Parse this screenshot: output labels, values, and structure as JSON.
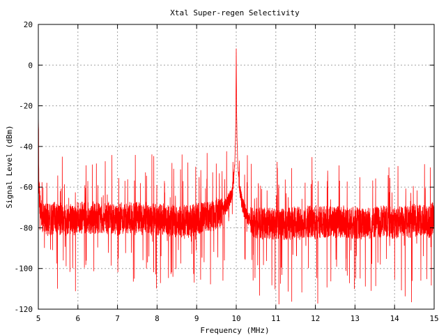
{
  "chart_data": {
    "type": "line",
    "title": "Xtal Super-regen Selectivity",
    "xlabel": "Frequency (MHz)",
    "ylabel": "Signal Level (dBm)",
    "xlim": [
      5,
      15
    ],
    "ylim": [
      -120,
      20
    ],
    "x_ticks": [
      5,
      6,
      7,
      8,
      9,
      10,
      11,
      12,
      13,
      14,
      15
    ],
    "y_ticks": [
      -120,
      -100,
      -80,
      -60,
      -40,
      -20,
      0,
      20
    ],
    "grid": true,
    "grid_style": "dotted",
    "line_color": "#ff0000",
    "series": [
      {
        "name": "",
        "x": [
          5.0,
          5.02,
          5.05,
          5.1,
          5.2,
          5.3,
          5.4,
          5.5,
          5.6,
          5.7,
          5.8,
          5.9,
          6.0,
          6.1,
          6.2,
          6.3,
          6.4,
          6.5,
          6.6,
          6.7,
          6.8,
          6.9,
          7.0,
          7.1,
          7.2,
          7.3,
          7.4,
          7.5,
          7.6,
          7.7,
          7.8,
          7.9,
          8.0,
          8.1,
          8.2,
          8.3,
          8.4,
          8.5,
          8.6,
          8.7,
          8.8,
          8.9,
          9.0,
          9.1,
          9.2,
          9.3,
          9.4,
          9.5,
          9.6,
          9.7,
          9.75,
          9.8,
          9.85,
          9.9,
          9.93,
          9.96,
          9.98,
          9.99,
          10.0,
          10.01,
          10.02,
          10.04,
          10.07,
          10.1,
          10.15,
          10.2,
          10.25,
          10.3,
          10.4,
          10.5,
          10.6,
          10.7,
          10.8,
          10.9,
          11.0,
          11.1,
          11.2,
          11.3,
          11.4,
          11.5,
          11.6,
          11.7,
          11.8,
          11.9,
          12.0,
          12.1,
          12.2,
          12.3,
          12.4,
          12.5,
          12.6,
          12.7,
          12.8,
          12.9,
          13.0,
          13.1,
          13.2,
          13.3,
          13.4,
          13.5,
          13.6,
          13.7,
          13.8,
          13.9,
          14.0,
          14.1,
          14.2,
          14.3,
          14.4,
          14.5,
          14.6,
          14.7,
          14.8,
          14.9,
          15.0
        ],
        "y": [
          -24,
          -62,
          -70,
          -75,
          -76,
          -76,
          -75,
          -76,
          -75,
          -76,
          -75,
          -76,
          -75,
          -75,
          -76,
          -75,
          -75,
          -75,
          -75,
          -76,
          -75,
          -75,
          -76,
          -75,
          -75,
          -75,
          -76,
          -75,
          -76,
          -75,
          -76,
          -76,
          -76,
          -76,
          -76,
          -77,
          -76,
          -77,
          -77,
          -76,
          -77,
          -76,
          -76,
          -75,
          -75,
          -74,
          -74,
          -73,
          -72,
          -70,
          -69,
          -67,
          -65,
          -62,
          -57,
          -49,
          -38,
          -26,
          9,
          -22,
          -37,
          -49,
          -57,
          -63,
          -68,
          -71,
          -73,
          -76,
          -77,
          -77,
          -78,
          -78,
          -78,
          -78,
          -78,
          -78,
          -78,
          -78,
          -78,
          -77,
          -78,
          -77,
          -77,
          -77,
          -78,
          -77,
          -77,
          -77,
          -77,
          -77,
          -77,
          -77,
          -77,
          -78,
          -77,
          -78,
          -78,
          -77,
          -78,
          -77,
          -77,
          -77,
          -77,
          -77,
          -78,
          -77,
          -77,
          -77,
          -77,
          -76,
          -77,
          -76,
          -77,
          -77,
          -74
        ]
      }
    ]
  }
}
